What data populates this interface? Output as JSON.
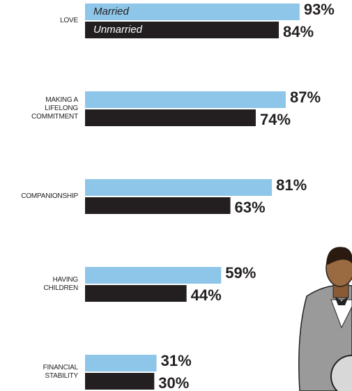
{
  "chart_data": {
    "type": "bar",
    "orientation": "horizontal",
    "categories": [
      "LOVE",
      "MAKING A LIFELONG COMMITMENT",
      "COMPANIONSHIP",
      "HAVING CHILDREN",
      "FINANCIAL STABILITY"
    ],
    "series": [
      {
        "name": "Married",
        "color": "#8ec6e9",
        "values": [
          93,
          87,
          81,
          59,
          31
        ],
        "value_labels": [
          "93%",
          "87%",
          "81%",
          "59%",
          "31%"
        ]
      },
      {
        "name": "Unmarried",
        "color": "#231f20",
        "values": [
          84,
          74,
          63,
          44,
          30
        ],
        "value_labels": [
          "84%",
          "74%",
          "63%",
          "44%",
          "30%"
        ]
      }
    ],
    "xlim": [
      0,
      100
    ]
  }
}
